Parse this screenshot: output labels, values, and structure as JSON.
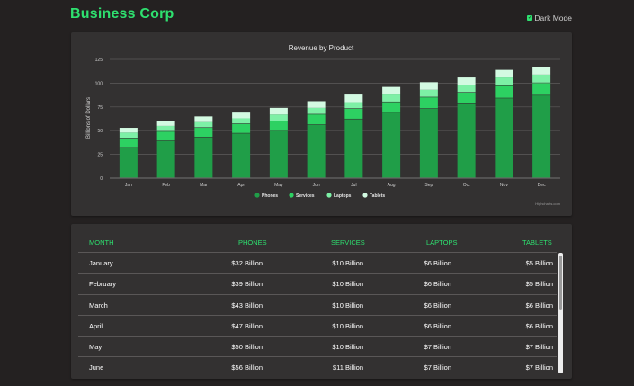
{
  "header": {
    "brand": "Business Corp",
    "dark_mode_label": "Dark Mode",
    "dark_mode_checked": true
  },
  "colors": {
    "accent": "#2ee06f",
    "phones": "#209e48",
    "services": "#2dd162",
    "laptops": "#7df0a6",
    "tablets": "#d3fae2"
  },
  "chart_data": {
    "type": "bar",
    "stacked": true,
    "title": "Revenue by Product",
    "ylabel": "Billions of Dollars",
    "xlabel": "",
    "ylim": [
      0,
      125
    ],
    "yticks": [
      "0",
      "25",
      "50",
      "75",
      "100",
      "125"
    ],
    "categories": [
      "Jan",
      "Feb",
      "Mar",
      "Apr",
      "May",
      "Jun",
      "Jul",
      "Aug",
      "Sep",
      "Oct",
      "Nov",
      "Dec"
    ],
    "series": [
      {
        "name": "Phones",
        "color": "#209e48",
        "values": [
          32,
          39,
          43,
          47,
          50,
          56,
          62,
          69,
          73,
          78,
          84,
          87
        ]
      },
      {
        "name": "Services",
        "color": "#2dd162",
        "values": [
          10,
          10,
          10,
          10,
          10,
          11,
          11,
          11,
          12,
          12,
          13,
          13
        ]
      },
      {
        "name": "Laptops",
        "color": "#7df0a6",
        "values": [
          6,
          6,
          6,
          6,
          7,
          7,
          7,
          8,
          8,
          8,
          9,
          9
        ]
      },
      {
        "name": "Tablets",
        "color": "#d3fae2",
        "values": [
          5,
          5,
          6,
          6,
          7,
          7,
          8,
          8,
          8,
          8,
          8,
          8
        ]
      }
    ],
    "legend_position": "bottom",
    "grid": true,
    "credits": "Highcharts.com"
  },
  "table": {
    "columns": [
      "MONTH",
      "PHONES",
      "SERVICES",
      "LAPTOPS",
      "TABLETS"
    ],
    "rows": [
      [
        "January",
        "$32 Billion",
        "$10 Billion",
        "$6 Billion",
        "$5 Billion"
      ],
      [
        "February",
        "$39 Billion",
        "$10 Billion",
        "$6 Billion",
        "$5 Billion"
      ],
      [
        "March",
        "$43 Billion",
        "$10 Billion",
        "$6 Billion",
        "$6 Billion"
      ],
      [
        "April",
        "$47 Billion",
        "$10 Billion",
        "$6 Billion",
        "$6 Billion"
      ],
      [
        "May",
        "$50 Billion",
        "$10 Billion",
        "$7 Billion",
        "$7 Billion"
      ],
      [
        "June",
        "$56 Billion",
        "$11 Billion",
        "$7 Billion",
        "$7 Billion"
      ]
    ]
  }
}
